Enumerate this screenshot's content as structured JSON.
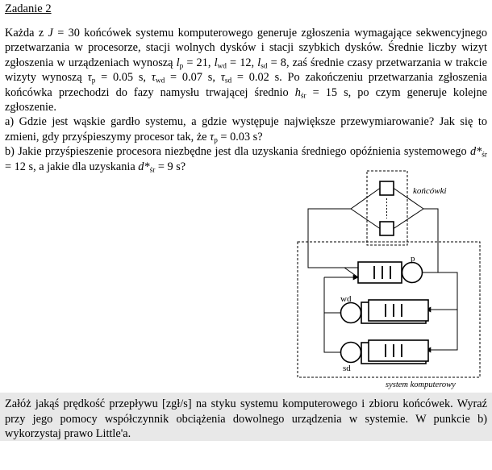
{
  "title": "Zadanie 2",
  "paragraph": {
    "s1": "Każda z ",
    "J": "J",
    "s2": " = 30 końcówek systemu komputerowego generuje zgłoszenia wymagające sekwencyjnego przetwarzania w procesorze, stacji wolnych dysków i stacji szybkich dysków. Średnie liczby wizyt zgłoszenia w urządzeniach wynoszą ",
    "s3": " = 21, ",
    "s4": " = 12, ",
    "s5": " = 8, zaś średnie czasy przetwarzania w trakcie wizyty wynoszą ",
    "s6": " = 0.05 s, ",
    "s7": " = 0.07 s, ",
    "s8": " = 0.02 s. Po zakończeniu przetwarzania zgłoszenia końcówka przechodzi do fazy namysłu trwającej średnio ",
    "s9": " = 15 s, po czym generuje kolejne zgłoszenie."
  },
  "symbols": {
    "l": "l",
    "tau": "τ",
    "h": "h",
    "d": "d*",
    "sub_p": "p",
    "sub_wd": "wd",
    "sub_sd": "sd",
    "sub_sr": "śr"
  },
  "question_a": {
    "text": "a) Gdzie jest wąskie gardło systemu, a gdzie występuje największe przewymiarowanie? Jak się to zmieni, gdy przyśpieszymy procesor tak, że ",
    "tail": " = 0.03 s?"
  },
  "question_b": {
    "text": "b) Jakie przyśpieszenie procesora niezbędne jest dla uzyskania średniego opóźnienia systemowego ",
    "mid": " = 12 s, a jakie dla uzyskania ",
    "tail": " = 9 s?"
  },
  "diagram": {
    "terminals_label": "końcówki",
    "system_label": "system komputerowy",
    "cpu_label": "p",
    "wd_label": "wd",
    "sd_label": "sd"
  },
  "hint": "Załóż jakąś prędkość przepływu [zgł/s] na styku systemu komputerowego i zbioru końcówek. Wyraź przy jego pomocy współczynnik obciążenia dowolnego urządzenia w systemie. W punkcie b) wykorzystaj prawo Little'a."
}
